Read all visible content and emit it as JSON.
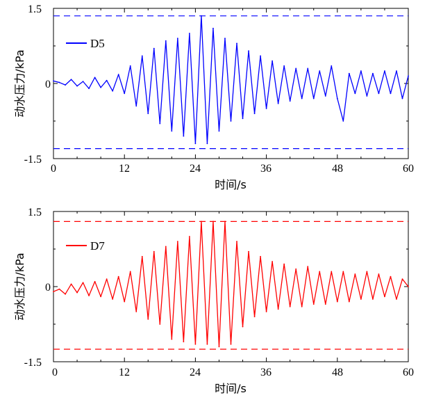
{
  "chart_data": [
    {
      "type": "line",
      "xlabel": "时间/s",
      "ylabel": "动水压力/kPa",
      "xlim": [
        0,
        60
      ],
      "ylim": [
        -1.5,
        1.5
      ],
      "x_ticks": [
        "0",
        "12",
        "24",
        "36",
        "48",
        "60"
      ],
      "y_ticks": [
        "1.5",
        "0",
        "-1.5"
      ],
      "legend_position": "top-left",
      "series": [
        {
          "name": "D5",
          "color": "#0000ff",
          "x": [
            0,
            1,
            2,
            3,
            4,
            5,
            6,
            7,
            8,
            9,
            10,
            11,
            12,
            13,
            14,
            15,
            16,
            17,
            18,
            19,
            20,
            21,
            22,
            23,
            24,
            25,
            26,
            27,
            28,
            29,
            30,
            31,
            32,
            33,
            34,
            35,
            36,
            37,
            38,
            39,
            40,
            41,
            42,
            43,
            44,
            45,
            46,
            47,
            48,
            49,
            50,
            51,
            52,
            53,
            54,
            55,
            56,
            57,
            58,
            59,
            60
          ],
          "y": [
            0.05,
            0.02,
            -0.03,
            0.08,
            -0.05,
            0.04,
            -0.1,
            0.12,
            -0.08,
            0.06,
            -0.15,
            0.18,
            -0.2,
            0.35,
            -0.45,
            0.55,
            -0.6,
            0.7,
            -0.8,
            0.85,
            -0.95,
            0.9,
            -1.05,
            1.0,
            -1.2,
            1.35,
            -1.2,
            1.1,
            -0.95,
            0.9,
            -0.75,
            0.8,
            -0.7,
            0.65,
            -0.6,
            0.55,
            -0.5,
            0.45,
            -0.4,
            0.35,
            -0.35,
            0.3,
            -0.3,
            0.3,
            -0.3,
            0.25,
            -0.25,
            0.35,
            -0.3,
            -0.75,
            0.2,
            -0.2,
            0.25,
            -0.25,
            0.2,
            -0.2,
            0.25,
            -0.2,
            0.25,
            -0.3,
            0.15
          ],
          "reference_lines": [
            1.35,
            -1.3
          ]
        },
        {
          "name": "D7",
          "color": "#ff0000",
          "x": [
            0,
            1,
            2,
            3,
            4,
            5,
            6,
            7,
            8,
            9,
            10,
            11,
            12,
            13,
            14,
            15,
            16,
            17,
            18,
            19,
            20,
            21,
            22,
            23,
            24,
            25,
            26,
            27,
            28,
            29,
            30,
            31,
            32,
            33,
            34,
            35,
            36,
            37,
            38,
            39,
            40,
            41,
            42,
            43,
            44,
            45,
            46,
            47,
            48,
            49,
            50,
            51,
            52,
            53,
            54,
            55,
            56,
            57,
            58,
            59,
            60
          ],
          "y": [
            -0.1,
            -0.05,
            -0.15,
            0.05,
            -0.12,
            0.08,
            -0.18,
            0.1,
            -0.2,
            0.15,
            -0.25,
            0.2,
            -0.3,
            0.3,
            -0.5,
            0.6,
            -0.65,
            0.7,
            -0.75,
            0.8,
            -1.05,
            0.9,
            -1.1,
            1.0,
            -1.15,
            1.3,
            -1.15,
            1.3,
            -1.2,
            1.3,
            -1.15,
            0.9,
            -0.8,
            0.7,
            -0.6,
            0.6,
            -0.5,
            0.5,
            -0.45,
            0.45,
            -0.4,
            0.35,
            -0.4,
            0.4,
            -0.35,
            0.3,
            -0.35,
            0.3,
            -0.3,
            0.3,
            -0.3,
            0.25,
            -0.25,
            0.3,
            -0.25,
            0.25,
            -0.2,
            0.2,
            -0.25,
            0.15,
            0.0
          ],
          "reference_lines": [
            1.3,
            -1.25
          ]
        }
      ]
    }
  ]
}
